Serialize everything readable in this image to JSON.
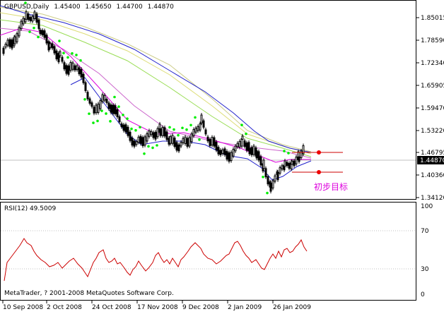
{
  "main_chart": {
    "header": {
      "symbol": "GBPUSD,Daily",
      "open": "1.45400",
      "high": "1.45650",
      "low": "1.44700",
      "close": "1.44870"
    },
    "price_axis": [
      "1.85015",
      "1.78590",
      "1.72340",
      "1.65905",
      "1.59470",
      "1.53220",
      "1.46795",
      "1.40360",
      "1.34120"
    ],
    "current_price": "1.44870",
    "annotation_text": "初步目标",
    "colors": {
      "candle": "#000000",
      "sar_dots": "#00ee00",
      "ma_blue": "#2222cc",
      "ma_magenta": "#dd00dd",
      "ma_violet": "#cc66cc",
      "ma_green": "#99dd55",
      "ma_yellow": "#dddd77",
      "ma_khaki": "#cccc88",
      "target_lines": "#cc0000",
      "annotation": "#dd00dd"
    }
  },
  "rsi_panel": {
    "label": "RSI(12) 49.5009",
    "levels": [
      "100",
      "70",
      "30",
      "0"
    ],
    "color": "#cc0000",
    "footer": "MetaTrader, ? 2001-2008 MetaQuotes Software Corp."
  },
  "time_axis": [
    "10 Sep 2008",
    "2 Oct 2008",
    "24 Oct 2008",
    "17 Nov 2008",
    "9 Dec 2008",
    "2 Jan 2009",
    "26 Jan 2009"
  ]
}
